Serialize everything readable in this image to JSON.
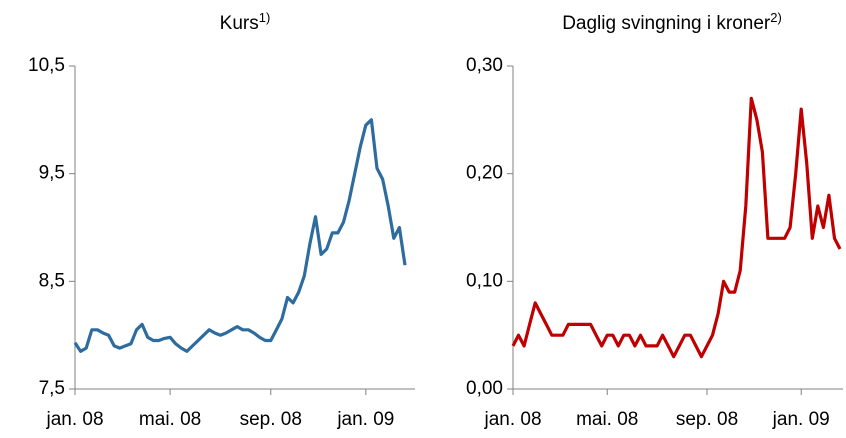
{
  "chart_data": [
    {
      "type": "line",
      "title": "Kurs",
      "title_note": "1)",
      "categories": [
        "jan. 08",
        null,
        null,
        null,
        null,
        null,
        null,
        null,
        null,
        null,
        null,
        null,
        null,
        null,
        null,
        null,
        null,
        "mai. 08",
        null,
        null,
        null,
        null,
        null,
        null,
        null,
        null,
        null,
        null,
        null,
        null,
        null,
        null,
        null,
        null,
        null,
        "sep. 08",
        null,
        null,
        null,
        null,
        null,
        null,
        null,
        null,
        null,
        null,
        null,
        null,
        null,
        null,
        null,
        null,
        "jan. 09",
        null,
        null,
        null,
        null,
        null,
        null,
        null
      ],
      "series": [
        {
          "color": "#2e6b9e",
          "values": [
            7.93,
            7.85,
            7.88,
            8.05,
            8.05,
            8.02,
            8.0,
            7.9,
            7.88,
            7.9,
            7.92,
            8.05,
            8.1,
            7.98,
            7.95,
            7.95,
            7.97,
            7.98,
            7.92,
            7.88,
            7.85,
            7.9,
            7.95,
            8.0,
            8.05,
            8.02,
            8.0,
            8.02,
            8.05,
            8.08,
            8.05,
            8.05,
            8.02,
            7.98,
            7.95,
            7.95,
            8.05,
            8.15,
            8.35,
            8.3,
            8.4,
            8.55,
            8.85,
            9.1,
            8.75,
            8.8,
            8.95,
            8.95,
            9.05,
            9.25,
            9.5,
            9.75,
            9.95,
            10.0,
            9.55,
            9.45,
            9.2,
            8.9,
            9.0,
            8.65
          ]
        }
      ],
      "ylim": [
        7.5,
        10.5
      ],
      "yticks": [
        {
          "value": 7.5,
          "label": "7,5"
        },
        {
          "value": 8.5,
          "label": "8,5"
        },
        {
          "value": 9.5,
          "label": "9,5"
        },
        {
          "value": 10.5,
          "label": "10,5"
        }
      ]
    },
    {
      "type": "line",
      "title": "Daglig svingning i kroner",
      "title_note": "2)",
      "categories": [
        "jan. 08",
        null,
        null,
        null,
        null,
        null,
        null,
        null,
        null,
        null,
        null,
        null,
        null,
        null,
        null,
        null,
        null,
        "mai. 08",
        null,
        null,
        null,
        null,
        null,
        null,
        null,
        null,
        null,
        null,
        null,
        null,
        null,
        null,
        null,
        null,
        null,
        "sep. 08",
        null,
        null,
        null,
        null,
        null,
        null,
        null,
        null,
        null,
        null,
        null,
        null,
        null,
        null,
        null,
        null,
        "jan. 09",
        null,
        null,
        null,
        null,
        null,
        null,
        null
      ],
      "series": [
        {
          "color": "#c00000",
          "values": [
            0.04,
            0.05,
            0.04,
            0.06,
            0.08,
            0.07,
            0.06,
            0.05,
            0.05,
            0.05,
            0.06,
            0.06,
            0.06,
            0.06,
            0.06,
            0.05,
            0.04,
            0.05,
            0.05,
            0.04,
            0.05,
            0.05,
            0.04,
            0.05,
            0.04,
            0.04,
            0.04,
            0.05,
            0.04,
            0.03,
            0.04,
            0.05,
            0.05,
            0.04,
            0.03,
            0.04,
            0.05,
            0.07,
            0.1,
            0.09,
            0.09,
            0.11,
            0.17,
            0.27,
            0.25,
            0.22,
            0.14,
            0.14,
            0.14,
            0.14,
            0.15,
            0.2,
            0.26,
            0.21,
            0.14,
            0.17,
            0.15,
            0.18,
            0.14,
            0.13
          ]
        }
      ],
      "ylim": [
        0,
        0.3
      ],
      "yticks": [
        {
          "value": 0,
          "label": "0,00"
        },
        {
          "value": 0.1,
          "label": "0,10"
        },
        {
          "value": 0.2,
          "label": "0,20"
        },
        {
          "value": 0.3,
          "label": "0,30"
        }
      ]
    }
  ]
}
